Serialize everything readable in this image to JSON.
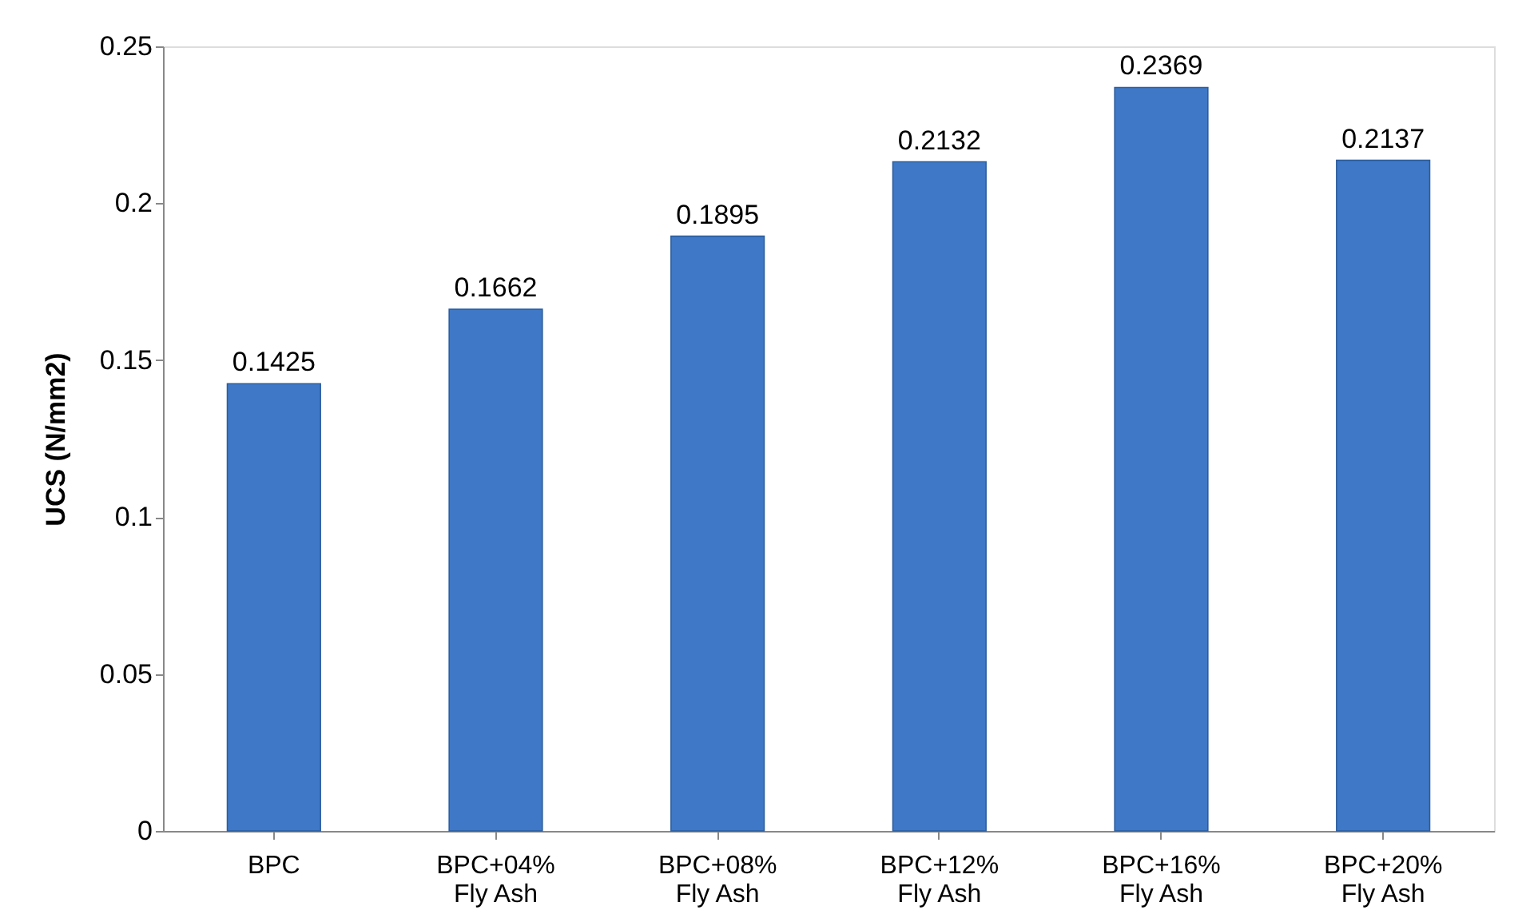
{
  "chart_data": {
    "type": "bar",
    "ylabel": "UCS (N/mm2)",
    "categories": [
      "BPC",
      "BPC+04%\nFly Ash",
      "BPC+08%\nFly Ash",
      "BPC+12%\nFly Ash",
      "BPC+16%\nFly Ash",
      "BPC+20%\nFly Ash"
    ],
    "values": [
      0.1425,
      0.1662,
      0.1895,
      0.2132,
      0.2369,
      0.2137
    ],
    "color": "#3f78c6",
    "ylim": [
      0,
      0.25
    ],
    "yticks": [
      0,
      0.05,
      0.1,
      0.15,
      0.2,
      0.25
    ],
    "data_labels": true,
    "grid": false
  }
}
